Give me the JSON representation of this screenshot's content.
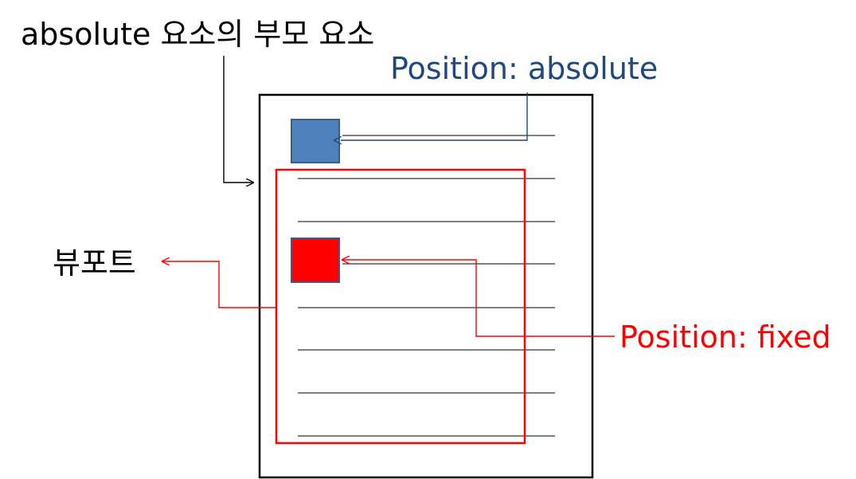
{
  "labels": {
    "absolute_parent": "absolute 요소의 부모 요소",
    "position_absolute": "Position: absolute",
    "viewport": "뷰포트",
    "position_fixed": "Position: fixed"
  },
  "colors": {
    "black": "#000000",
    "blue_text": "#1F497D",
    "blue_box": "#4F81BD",
    "blue_box_border": "#385D8A",
    "red": "#FF0000",
    "red_box_border": "#385D8A"
  }
}
